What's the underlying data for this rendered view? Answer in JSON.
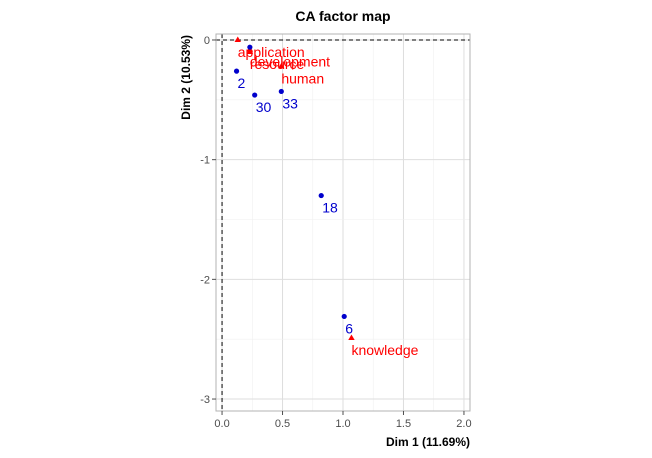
{
  "chart_data": {
    "type": "scatter",
    "title": "CA factor map",
    "xlabel": "Dim 1 (11.69%)",
    "ylabel": "Dim 2 (10.53%)",
    "xlim": [
      -0.05,
      2.05
    ],
    "ylim": [
      -3.1,
      0.05
    ],
    "xticks": [
      0,
      0.5,
      1,
      1.5,
      2
    ],
    "xtick_labels": [
      "0.0",
      "0.5",
      "1.0",
      "1.5",
      "2.0"
    ],
    "yticks": [
      0,
      -1,
      -2,
      -3
    ],
    "ytick_labels": [
      "0",
      "-1",
      "-2",
      "-3"
    ],
    "grid": true,
    "reference_lines": {
      "x": 0,
      "y": 0
    },
    "colors": {
      "rows": "#0000cc",
      "cols": "#ff0000"
    },
    "rows": [
      {
        "label": "2",
        "x": 0.12,
        "y": -0.26
      },
      {
        "label": "30",
        "x": 0.27,
        "y": -0.46
      },
      {
        "label": "33",
        "x": 0.49,
        "y": -0.43
      },
      {
        "label": "18",
        "x": 0.82,
        "y": -1.3
      },
      {
        "label": "6",
        "x": 1.01,
        "y": -2.31
      },
      {
        "label": "",
        "x": 0.23,
        "y": -0.06
      }
    ],
    "cols": [
      {
        "label": "application",
        "x": 0.13,
        "y": 0.0
      },
      {
        "label": "development",
        "x": 0.23,
        "y": -0.08
      },
      {
        "label": "resource",
        "x": 0.23,
        "y": -0.1
      },
      {
        "label": "human",
        "x": 0.49,
        "y": -0.22
      },
      {
        "label": "knowledge",
        "x": 1.07,
        "y": -2.49
      }
    ]
  }
}
